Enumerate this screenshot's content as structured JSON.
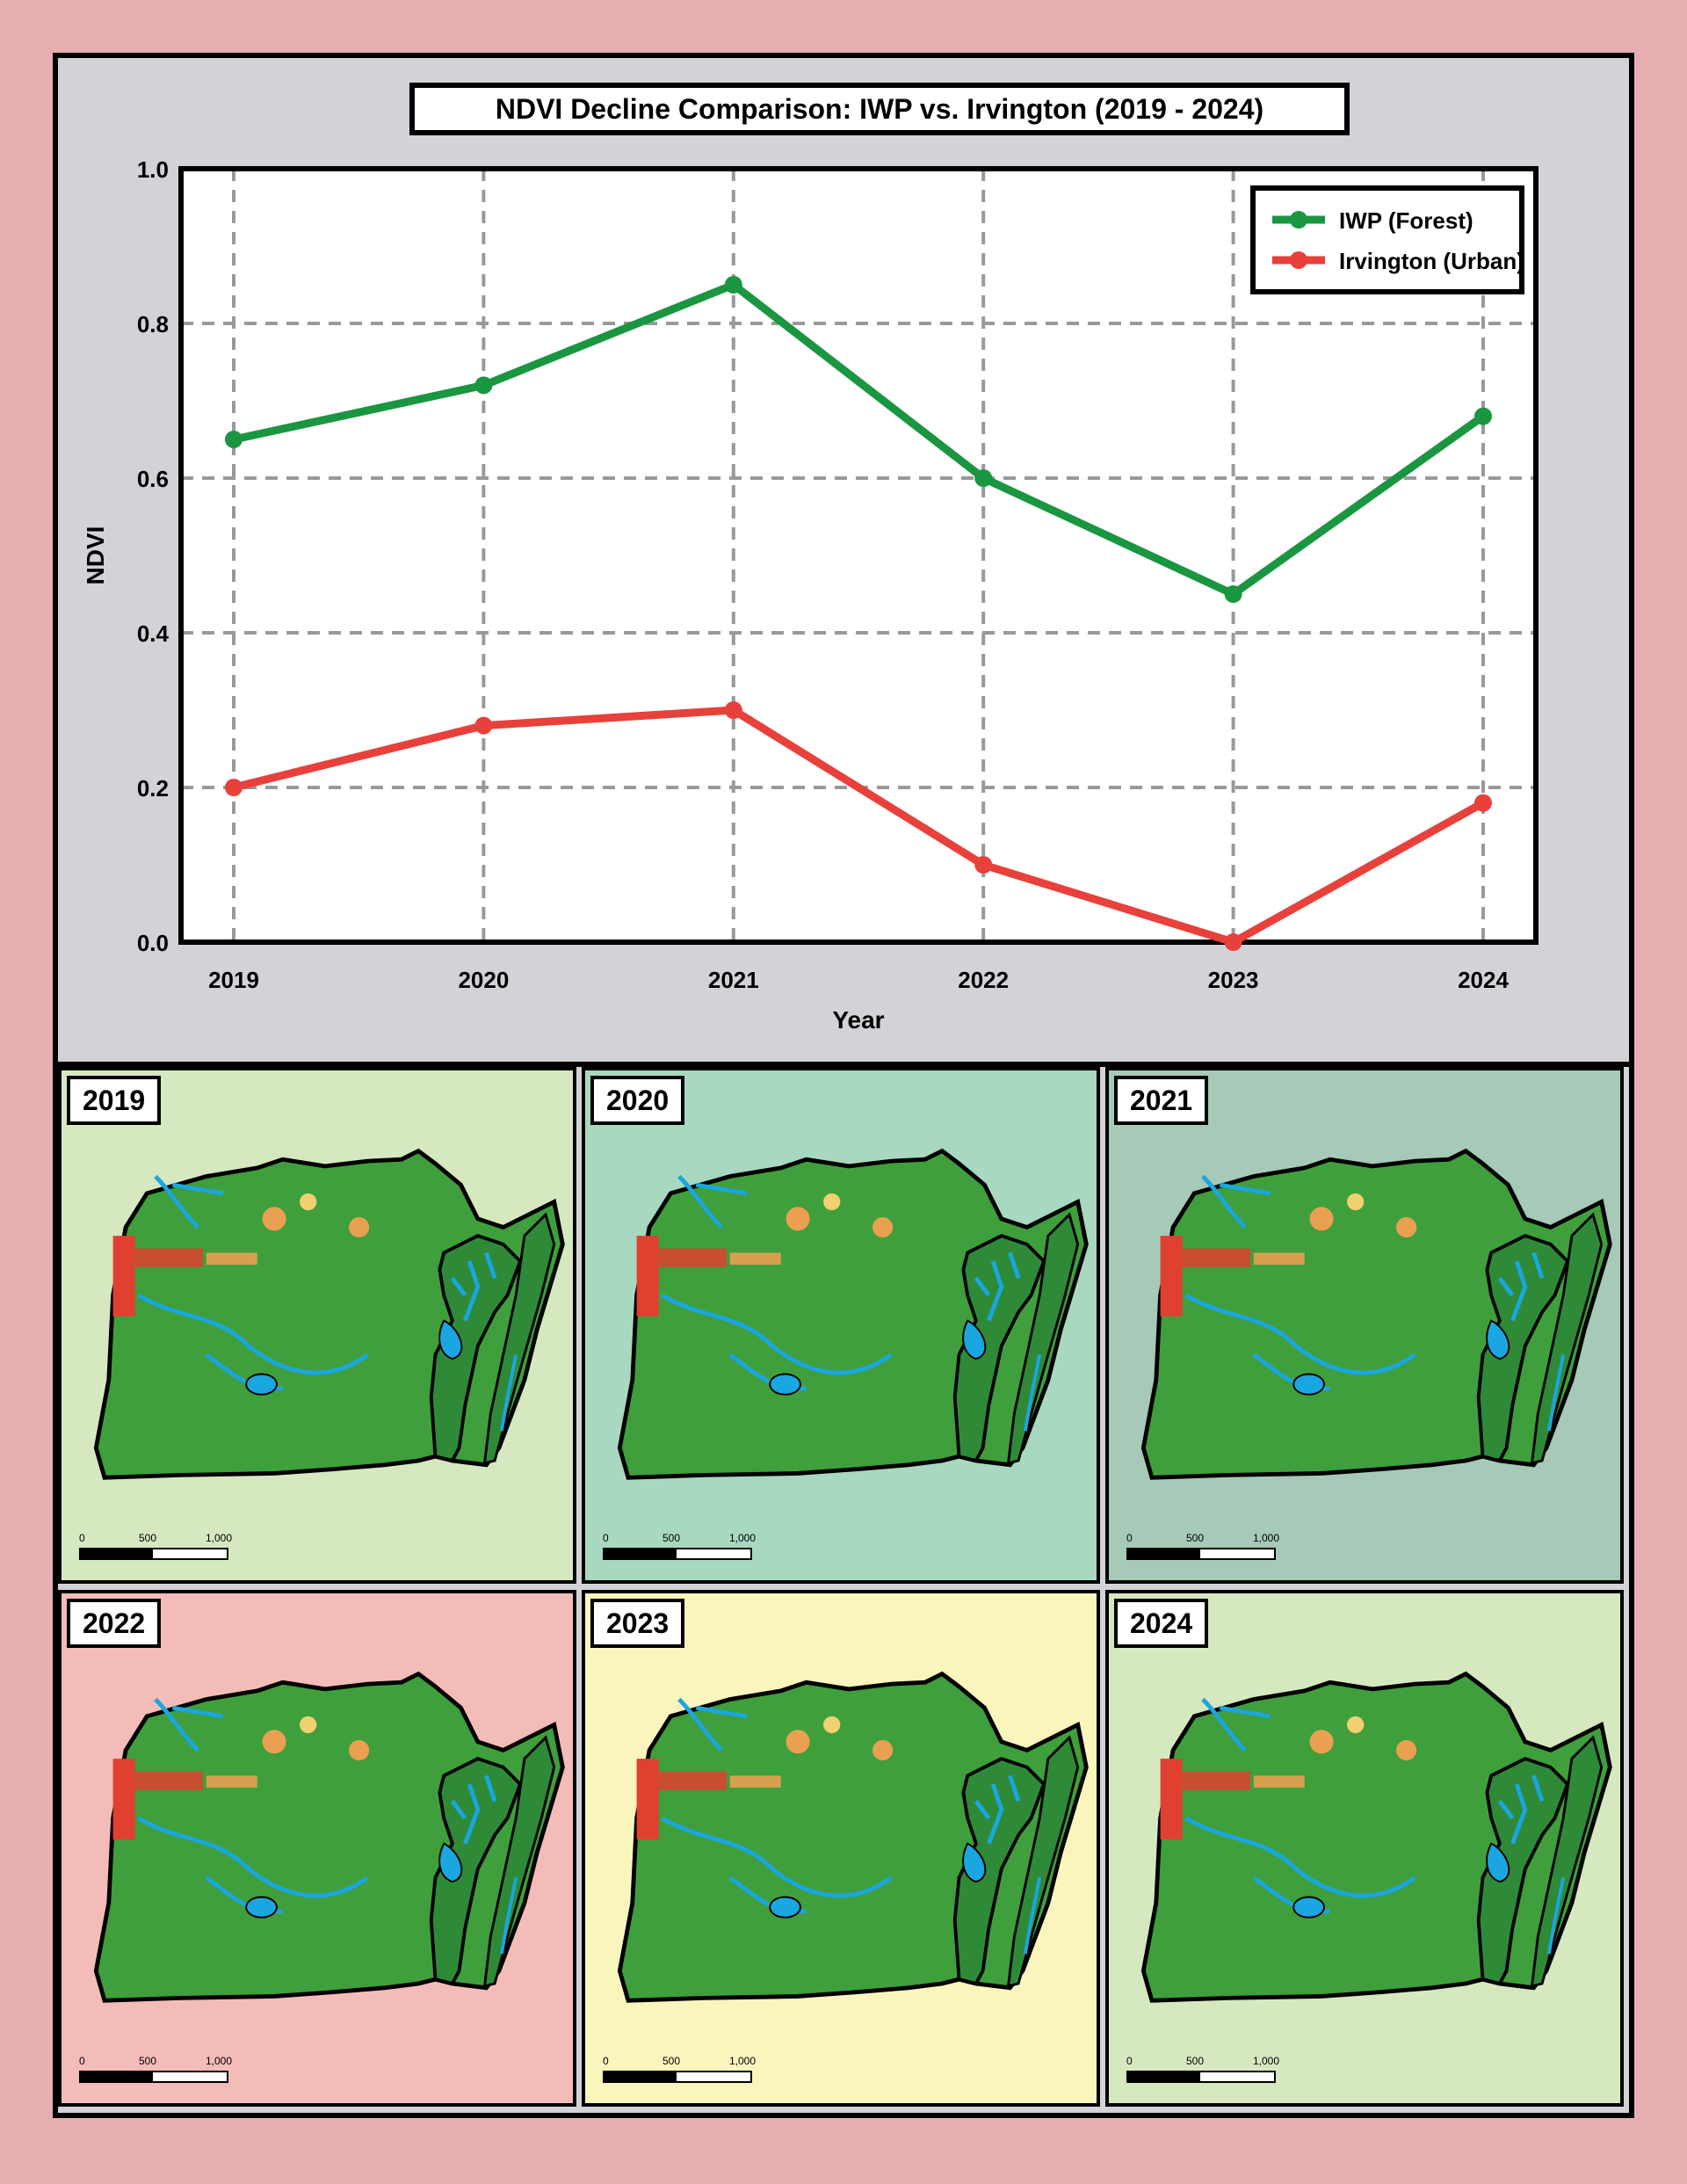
{
  "chart_data": {
    "type": "line",
    "title": "NDVI Decline Comparison: IWP vs. Irvington (2019 - 2024)",
    "xlabel": "Year",
    "ylabel": "NDVI",
    "categories": [
      "2019",
      "2020",
      "2021",
      "2022",
      "2023",
      "2024"
    ],
    "ylim": [
      0.0,
      1.0
    ],
    "yticks": [
      "0.0",
      "0.2",
      "0.4",
      "0.6",
      "0.8",
      "1.0"
    ],
    "grid": true,
    "legend_position": "top-right",
    "series": [
      {
        "name": "IWP (Forest)",
        "color": "#1a9641",
        "values": [
          0.65,
          0.72,
          0.85,
          0.6,
          0.45,
          0.68
        ]
      },
      {
        "name": "Irvington (Urban)",
        "color": "#e8403a",
        "values": [
          0.2,
          0.28,
          0.3,
          0.1,
          0.0,
          0.18
        ]
      }
    ]
  },
  "maps": {
    "panels": [
      {
        "year": "2019",
        "background": "#d6e8c0"
      },
      {
        "year": "2020",
        "background": "#a8d8c0"
      },
      {
        "year": "2021",
        "background": "#a6c9b8"
      },
      {
        "year": "2022",
        "background": "#f4bcb9"
      },
      {
        "year": "2023",
        "background": "#faf5bd"
      },
      {
        "year": "2024",
        "background": "#d6e8c0"
      }
    ],
    "scale_labels": [
      "0",
      "500",
      "1,000 m"
    ],
    "colors": {
      "vegetation": "#3f9f3c",
      "forest": "#2f8a38",
      "urban": "#e04030",
      "water": "#1aa6e0"
    }
  }
}
